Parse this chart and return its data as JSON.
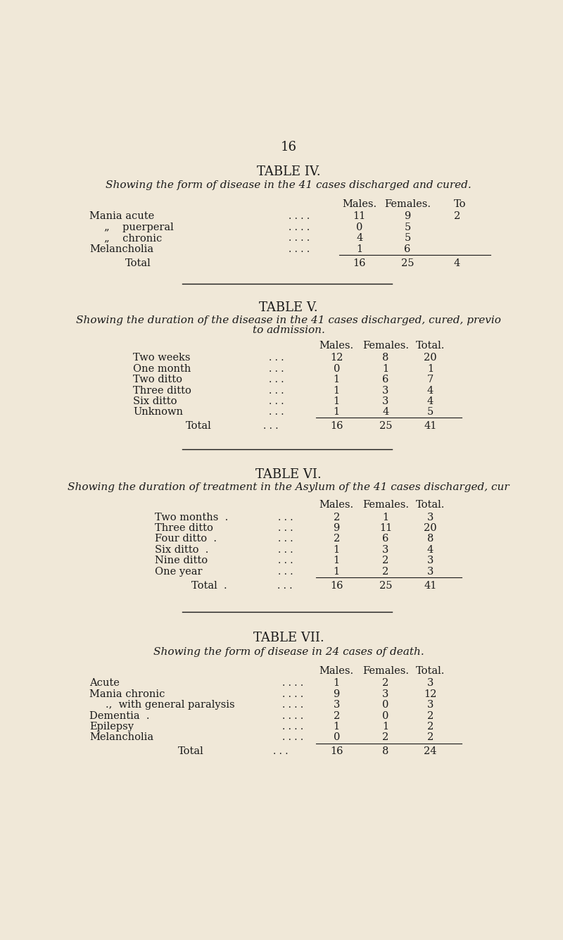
{
  "bg_color": "#f0e8d8",
  "page_number": "16",
  "t4_title": "TABLE IV.",
  "t4_subtitle": "Showing the form of disease in the 41 cases discharged and cured.",
  "t4_headers": [
    "Males.",
    "Females.",
    "To"
  ],
  "t4_labels": [
    "Mania acute",
    "„    puerperal",
    "„    chronic",
    "Melancholia"
  ],
  "t4_males": [
    "11",
    "0",
    "4",
    "1"
  ],
  "t4_females": [
    "9",
    "5",
    "5",
    "6"
  ],
  "t4_totals": [
    "2",
    "",
    "",
    ""
  ],
  "t4_indent": [
    false,
    true,
    true,
    false
  ],
  "t4_total": [
    "Total",
    "16",
    "25",
    "4"
  ],
  "t5_title": "TABLE V.",
  "t5_subtitle1": "Showing the duration of the disease in the 41 cases discharged, cured, previo",
  "t5_subtitle2": "to admission.",
  "t5_headers": [
    "Males.",
    "Females.",
    "Total."
  ],
  "t5_labels": [
    "Two weeks",
    "One month",
    "Two ditto",
    "Three ditto",
    "Six ditto",
    "Unknown"
  ],
  "t5_males": [
    "12",
    "0",
    "1",
    "1",
    "1",
    "1"
  ],
  "t5_females": [
    "8",
    "1",
    "6",
    "3",
    "3",
    "4"
  ],
  "t5_totals": [
    "20",
    "1",
    "7",
    "4",
    "4",
    "5"
  ],
  "t5_total": [
    "Total",
    "16",
    "25",
    "41"
  ],
  "t6_title": "TABLE VI.",
  "t6_subtitle": "Showing the duration of treatment in the Asylum of the 41 cases discharged, cur",
  "t6_headers": [
    "Males.",
    "Females.",
    "Total."
  ],
  "t6_labels": [
    "Two months  .",
    "Three ditto",
    "Four ditto  .",
    "Six ditto  .",
    "Nine ditto",
    "One year"
  ],
  "t6_males": [
    "2",
    "9",
    "2",
    "1",
    "1",
    "1"
  ],
  "t6_females": [
    "1",
    "11",
    "6",
    "3",
    "2",
    "2"
  ],
  "t6_totals": [
    "3",
    "20",
    "8",
    "4",
    "3",
    "3"
  ],
  "t6_total": [
    "Total  .",
    "16",
    "25",
    "41"
  ],
  "t7_title": "TABLE VII.",
  "t7_subtitle": "Showing the form of disease in 24 cases of death.",
  "t7_headers": [
    "Males.",
    "Females.",
    "Total."
  ],
  "t7_labels": [
    "Acute",
    "Mania chronic",
    ".,  with general paralysis",
    "Dementia  .",
    "Epilepsy",
    "Melancholia"
  ],
  "t7_males": [
    "1",
    "9",
    "3",
    "2",
    "1",
    "0"
  ],
  "t7_females": [
    "2",
    "3",
    "0",
    "0",
    "1",
    "2"
  ],
  "t7_totals": [
    "3",
    "12",
    "3",
    "2",
    "2",
    "2"
  ],
  "t7_total": [
    "Total",
    "16",
    "8",
    "24"
  ],
  "t7_indent": [
    false,
    false,
    true,
    false,
    false,
    false
  ]
}
